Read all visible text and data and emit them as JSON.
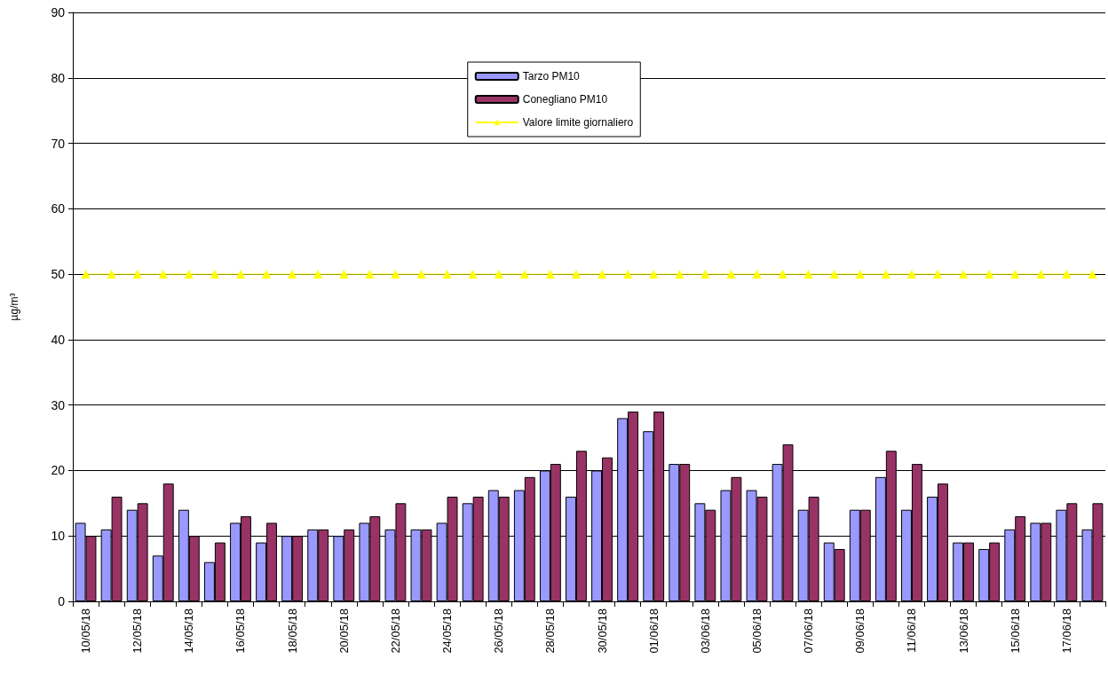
{
  "chart_data": {
    "type": "bar",
    "ylabel": "µg/m³",
    "categories": [
      "10/05/18",
      null,
      "12/05/18",
      null,
      "14/05/18",
      null,
      "16/05/18",
      null,
      "18/05/18",
      null,
      "20/05/18",
      null,
      "22/05/18",
      null,
      "24/05/18",
      null,
      "26/05/18",
      null,
      "28/05/18",
      null,
      "30/05/18",
      null,
      "01/06/18",
      null,
      "03/06/18",
      null,
      "05/06/18",
      null,
      "07/06/18",
      null,
      "09/06/18",
      null,
      "11/06/18",
      null,
      "13/06/18",
      null,
      "15/06/18",
      null,
      "17/06/18",
      null
    ],
    "series": [
      {
        "name": "Tarzo PM10",
        "color": "#9999ff",
        "values": [
          12,
          11,
          14,
          7,
          14,
          6,
          12,
          9,
          10,
          11,
          10,
          12,
          11,
          11,
          12,
          15,
          17,
          17,
          20,
          16,
          20,
          28,
          26,
          21,
          15,
          17,
          17,
          21,
          14,
          9,
          14,
          19,
          14,
          16,
          9,
          8,
          11,
          12,
          14,
          11
        ]
      },
      {
        "name": "Conegliano PM10",
        "color": "#993366",
        "values": [
          10,
          16,
          15,
          18,
          10,
          9,
          13,
          12,
          10,
          11,
          11,
          13,
          15,
          11,
          16,
          16,
          16,
          19,
          21,
          23,
          22,
          29,
          29,
          21,
          14,
          19,
          16,
          24,
          16,
          8,
          14,
          23,
          21,
          18,
          9,
          9,
          13,
          12,
          15,
          15
        ]
      },
      {
        "name": "Valore limite giornaliero",
        "type": "line",
        "color": "#ffff00",
        "values": [
          50,
          50,
          50,
          50,
          50,
          50,
          50,
          50,
          50,
          50,
          50,
          50,
          50,
          50,
          50,
          50,
          50,
          50,
          50,
          50,
          50,
          50,
          50,
          50,
          50,
          50,
          50,
          50,
          50,
          50,
          50,
          50,
          50,
          50,
          50,
          50,
          50,
          50,
          50,
          50
        ]
      }
    ],
    "ylim": [
      0,
      90
    ],
    "yticks": [
      0,
      10,
      20,
      30,
      40,
      50,
      60,
      70,
      80,
      90
    ],
    "grid": "y",
    "legend": "top",
    "marker": "triangle"
  }
}
